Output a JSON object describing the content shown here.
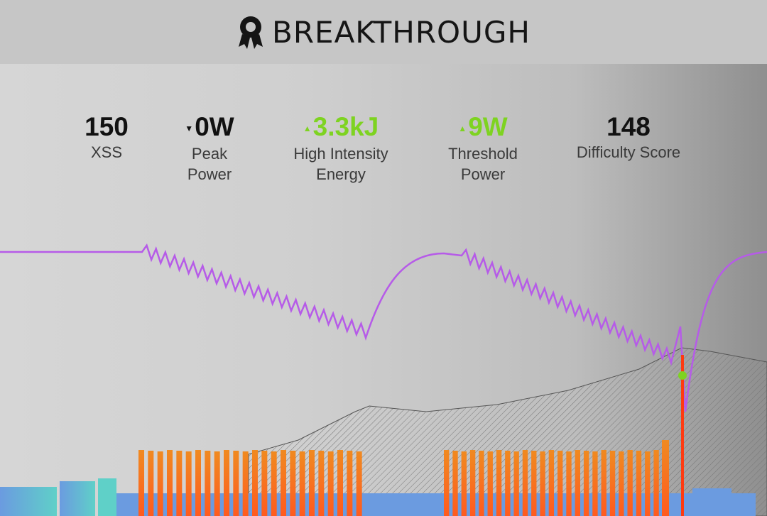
{
  "header": {
    "title": "BREAKTHROUGH"
  },
  "stats": [
    {
      "value": "150",
      "label": "XSS"
    },
    {
      "value": "0W",
      "label": "Peak Power"
    },
    {
      "value": "3.3kJ",
      "label": "High Intensity Energy"
    },
    {
      "value": "9W",
      "label": "Threshold Power"
    },
    {
      "value": "148",
      "label": "Difficulty Score"
    }
  ]
}
